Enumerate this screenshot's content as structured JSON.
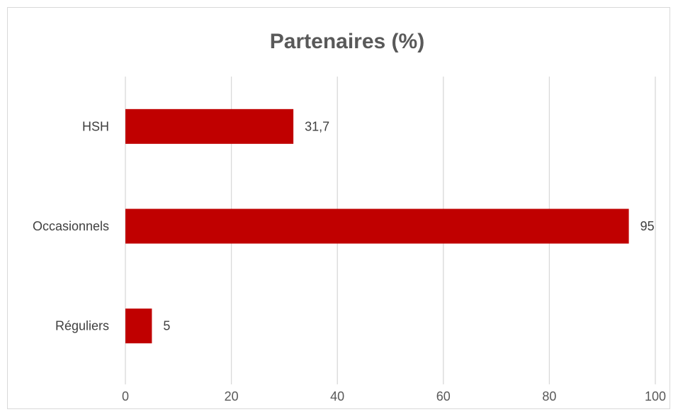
{
  "chart_data": {
    "type": "bar",
    "orientation": "horizontal",
    "title": "Partenaires (%)",
    "categories": [
      "HSH",
      "Occasionnels",
      "Réguliers"
    ],
    "values": [
      31.7,
      95,
      5
    ],
    "value_labels": [
      "31,7",
      "95",
      "5"
    ],
    "xlim": [
      0,
      100
    ],
    "xticks": [
      0,
      20,
      40,
      60,
      80,
      100
    ],
    "xlabel": "",
    "ylabel": "",
    "grid": "vertical",
    "legend": "none",
    "bar_color": "#c00000"
  }
}
